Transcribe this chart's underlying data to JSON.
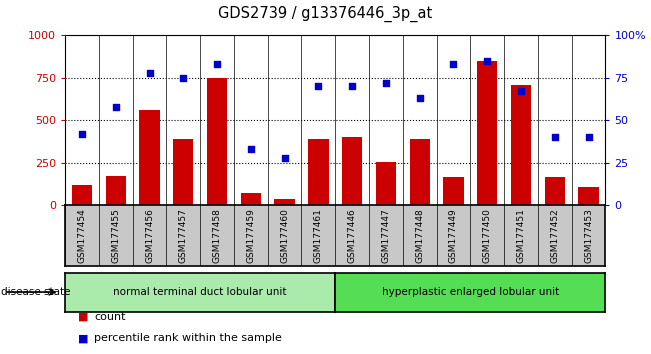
{
  "title": "GDS2739 / g13376446_3p_at",
  "samples": [
    "GSM177454",
    "GSM177455",
    "GSM177456",
    "GSM177457",
    "GSM177458",
    "GSM177459",
    "GSM177460",
    "GSM177461",
    "GSM177446",
    "GSM177447",
    "GSM177448",
    "GSM177449",
    "GSM177450",
    "GSM177451",
    "GSM177452",
    "GSM177453"
  ],
  "counts": [
    120,
    170,
    560,
    390,
    750,
    75,
    35,
    390,
    400,
    255,
    390,
    165,
    850,
    710,
    165,
    105
  ],
  "percentiles": [
    42,
    58,
    78,
    75,
    83,
    33,
    28,
    70,
    70,
    72,
    63,
    83,
    85,
    67,
    40,
    40
  ],
  "group1_label": "normal terminal duct lobular unit",
  "group2_label": "hyperplastic enlarged lobular unit",
  "group1_count": 8,
  "group2_count": 8,
  "bar_color": "#cc0000",
  "dot_color": "#0000cc",
  "ylim_left": [
    0,
    1000
  ],
  "ylim_right": [
    0,
    100
  ],
  "yticks_left": [
    0,
    250,
    500,
    750,
    1000
  ],
  "yticks_right": [
    0,
    25,
    50,
    75,
    100
  ],
  "xtick_bg": "#c8c8c8",
  "group1_color": "#aaeaaa",
  "group2_color": "#55dd55",
  "bar_color_left": "#cc0000",
  "dot_color_right": "#0000cc",
  "disease_state_label": "disease state"
}
